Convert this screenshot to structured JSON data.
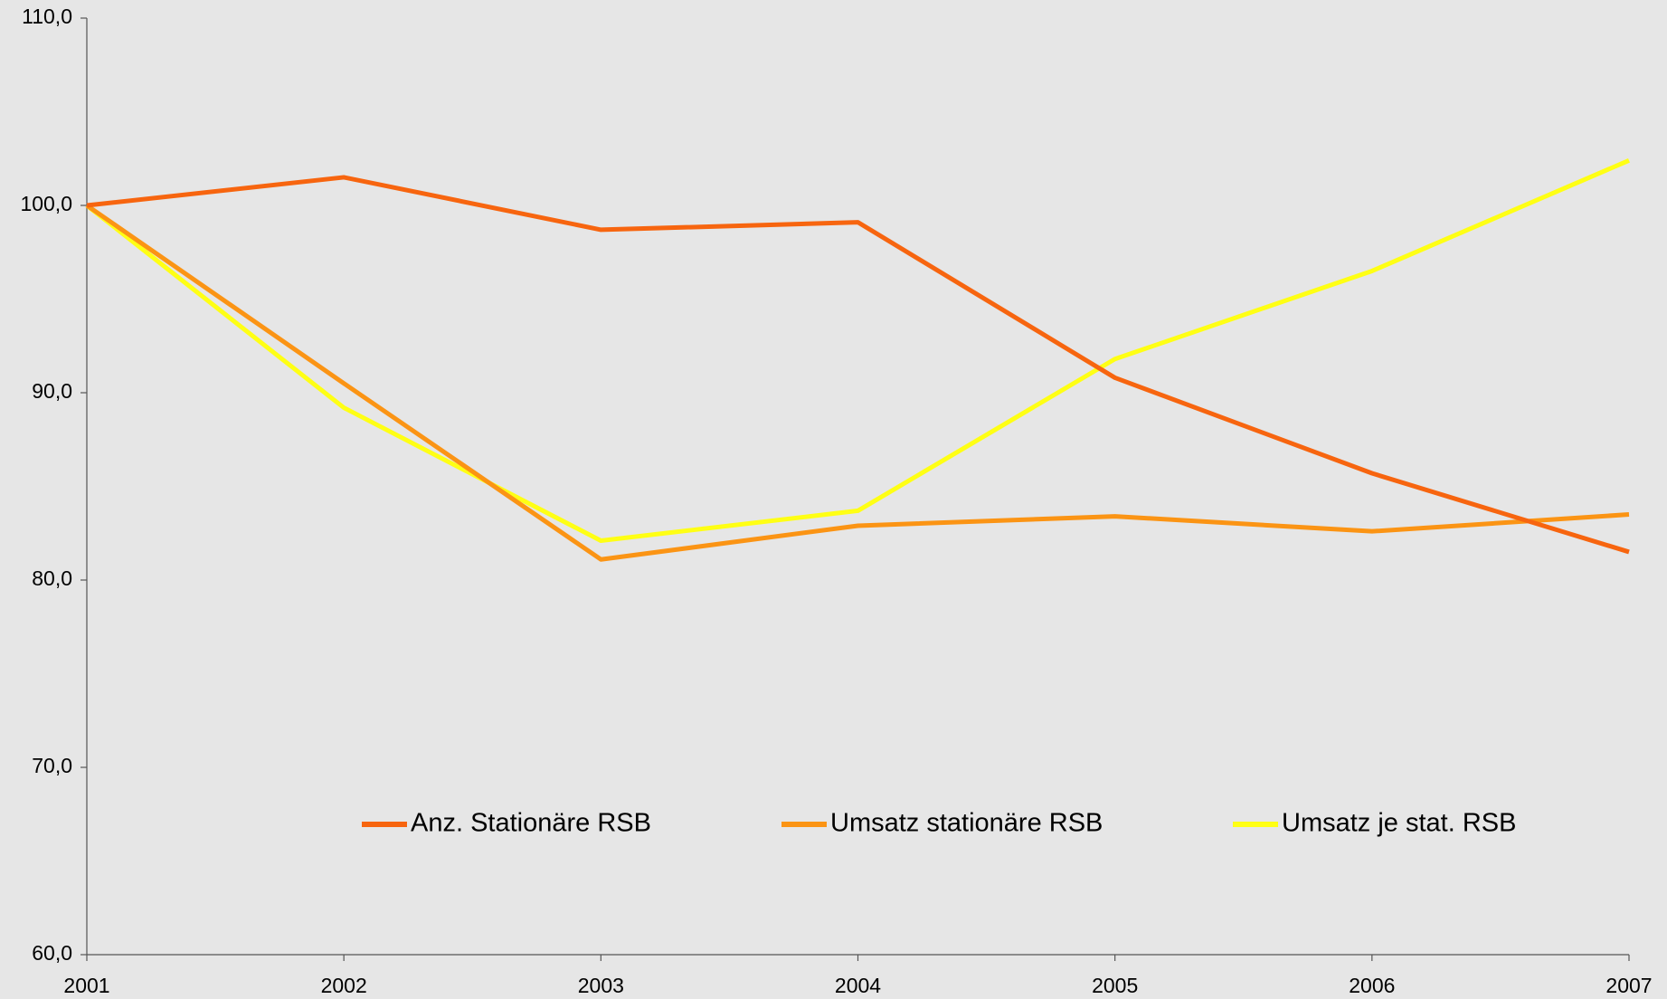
{
  "chart_data": {
    "type": "line",
    "categories": [
      "2001",
      "2002",
      "2003",
      "2004",
      "2005",
      "2006",
      "2007"
    ],
    "series": [
      {
        "name": "Anz. Stationäre RSB",
        "color": "#f7650f",
        "values": [
          100,
          101.5,
          98.7,
          99.1,
          90.8,
          85.7,
          81.5
        ]
      },
      {
        "name": "Umsatz stationäre RSB",
        "color": "#fb9414",
        "values": [
          100,
          90.5,
          81.1,
          82.9,
          83.4,
          82.6,
          83.5
        ]
      },
      {
        "name": "Umsatz je stat. RSB",
        "color": "#ffff14",
        "values": [
          100,
          89.2,
          82.1,
          83.7,
          91.8,
          96.5,
          102.4
        ]
      }
    ],
    "ylim": [
      60,
      110
    ],
    "yticks": [
      {
        "value": 60,
        "label": "60,0"
      },
      {
        "value": 70,
        "label": "70,0"
      },
      {
        "value": 80,
        "label": "80,0"
      },
      {
        "value": 90,
        "label": "90,0"
      },
      {
        "value": 100,
        "label": "100,0"
      },
      {
        "value": 110,
        "label": "110,0"
      }
    ],
    "grid": false,
    "legend": "bottom"
  }
}
